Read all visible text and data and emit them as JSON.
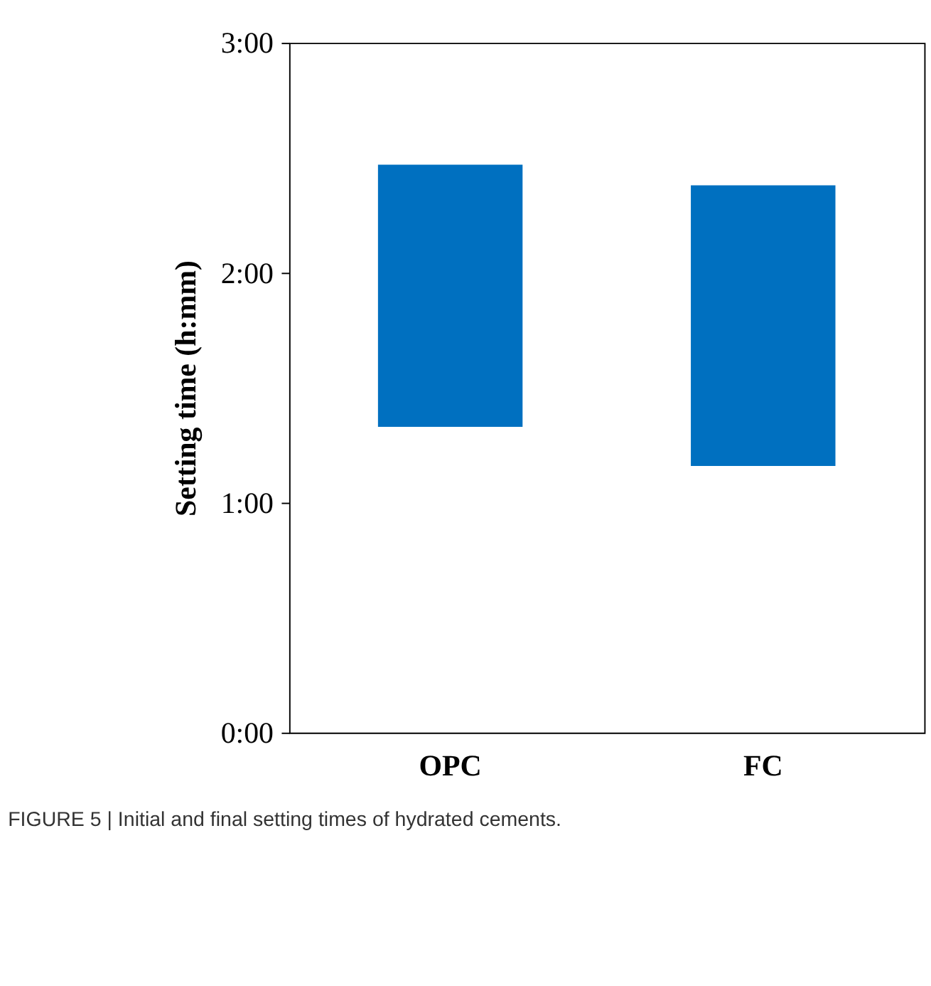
{
  "chart_data": {
    "type": "bar",
    "ylabel": "Setting time (h:mm)",
    "categories": [
      "OPC",
      "FC"
    ],
    "base": [
      1.33,
      1.16
    ],
    "values": [
      1.14,
      1.22
    ],
    "color": "#0070c0",
    "ylim": [
      0,
      3
    ],
    "yticks": [
      {
        "value": 0,
        "label": "0:00"
      },
      {
        "value": 1,
        "label": "1:00"
      },
      {
        "value": 2,
        "label": "2:00"
      },
      {
        "value": 3,
        "label": "3:00"
      }
    ],
    "grid": false,
    "annotations": [
      "FIGURE 5 | Initial and final setting times of hydrated cements."
    ]
  }
}
